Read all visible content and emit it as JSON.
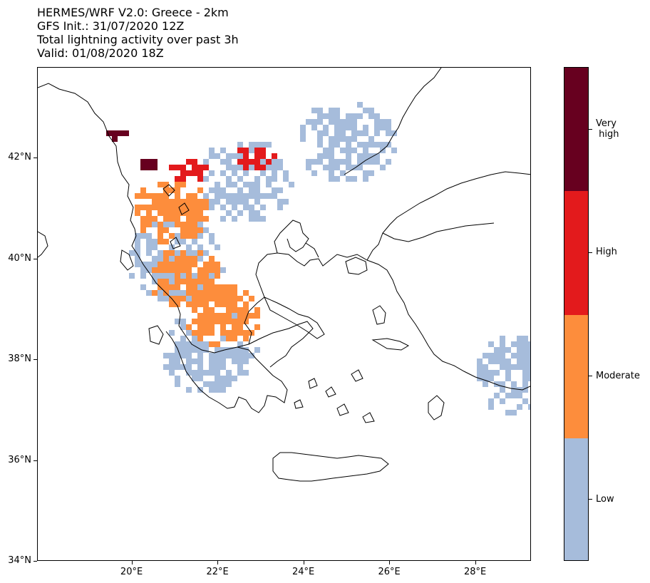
{
  "title": {
    "line1": "HERMES/WRF V2.0: Greece - 2km",
    "line2": "GFS Init.: 31/07/2020 12Z",
    "line3": "Total lightning activity over past 3h",
    "line4": "Valid: 01/08/2020 18Z"
  },
  "map": {
    "lon_range": [
      17.8,
      29.3
    ],
    "lat_range": [
      34.0,
      43.8
    ],
    "lat_ticks": [
      {
        "value": 34,
        "label": "34°N"
      },
      {
        "value": 36,
        "label": "36°N"
      },
      {
        "value": 38,
        "label": "38°N"
      },
      {
        "value": 40,
        "label": "40°N"
      },
      {
        "value": 42,
        "label": "42°N"
      }
    ],
    "lon_ticks": [
      {
        "value": 20,
        "label": "20°E"
      },
      {
        "value": 22,
        "label": "22°E"
      },
      {
        "value": 24,
        "label": "24°E"
      },
      {
        "value": 26,
        "label": "26°E"
      },
      {
        "value": 28,
        "label": "28°E"
      }
    ]
  },
  "legend": {
    "levels": [
      {
        "label": "Low",
        "color": "#a6bcdb"
      },
      {
        "label": "Moderate",
        "color": "#fd8d3c"
      },
      {
        "label": "High",
        "color": "#e31a1c"
      },
      {
        "label": "Very\n high",
        "color": "#67001f"
      }
    ]
  },
  "activity_regions": [
    {
      "level": "Low",
      "lon": 25.0,
      "lat": 42.4
    },
    {
      "level": "Low",
      "lon": 22.5,
      "lat": 41.6
    },
    {
      "level": "Low",
      "lon": 21.0,
      "lat": 40.0
    },
    {
      "level": "Low",
      "lon": 21.8,
      "lat": 38.2
    },
    {
      "level": "Low",
      "lon": 29.0,
      "lat": 37.8
    },
    {
      "level": "Moderate",
      "lon": 20.8,
      "lat": 41.0
    },
    {
      "level": "Moderate",
      "lon": 21.2,
      "lat": 39.7
    },
    {
      "level": "Moderate",
      "lon": 22.0,
      "lat": 39.0
    },
    {
      "level": "High",
      "lon": 21.2,
      "lat": 41.8
    },
    {
      "level": "High",
      "lon": 22.8,
      "lat": 42.1
    },
    {
      "level": "Very high",
      "lon": 20.3,
      "lat": 42.0
    },
    {
      "level": "Very high",
      "lon": 19.6,
      "lat": 42.5
    }
  ],
  "colors": {
    "coastline": "#000000"
  }
}
